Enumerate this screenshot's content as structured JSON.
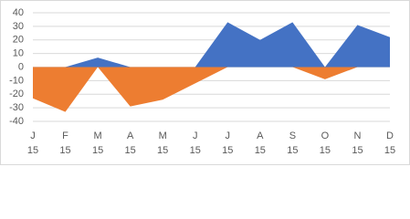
{
  "chart_data": {
    "type": "area",
    "categories": [
      "J",
      "F",
      "M",
      "A",
      "M",
      "J",
      "J",
      "A",
      "S",
      "O",
      "N",
      "D"
    ],
    "category_sublabels": [
      "15",
      "15",
      "15",
      "15",
      "15",
      "15",
      "15",
      "15",
      "15",
      "15",
      "15",
      "15"
    ],
    "series": [
      {
        "color": "#4472c4",
        "values": [
          0,
          0,
          7,
          0,
          0,
          0,
          33,
          20,
          33,
          0,
          31,
          22
        ]
      },
      {
        "color": "#ed7d31",
        "values": [
          -23,
          -33,
          0,
          -29,
          -24,
          -12,
          0,
          0,
          0,
          -9,
          0,
          0
        ]
      }
    ],
    "ylim": [
      -40,
      40
    ],
    "yticks": [
      -40,
      -30,
      -20,
      -10,
      0,
      10,
      20,
      30,
      40
    ],
    "grid": true
  }
}
